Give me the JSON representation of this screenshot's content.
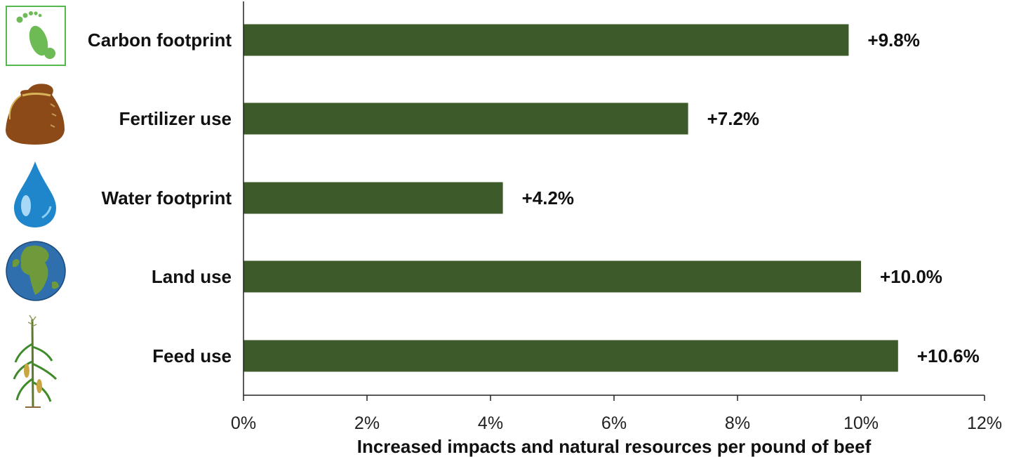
{
  "chart_data": {
    "type": "bar",
    "orientation": "horizontal",
    "categories": [
      "Carbon footprint",
      "Fertilizer use",
      "Water footprint",
      "Land use",
      "Feed use"
    ],
    "values": [
      9.8,
      7.2,
      4.2,
      10.0,
      10.6
    ],
    "value_labels": [
      "+9.8%",
      "+7.2%",
      "+4.2%",
      "+10.0%",
      "+10.6%"
    ],
    "xlabel": "Increased impacts and natural resources per pound of beef",
    "xlim": [
      0,
      12
    ],
    "xticks": [
      0,
      2,
      4,
      6,
      8,
      10,
      12
    ],
    "xtick_labels": [
      "0%",
      "2%",
      "4%",
      "6%",
      "8%",
      "10%",
      "12%"
    ],
    "grid": false,
    "bar_color": "#3d5a2a",
    "icons": [
      "footprint-icon",
      "fertilizer-sack-icon",
      "water-drop-icon",
      "globe-icon",
      "corn-plant-icon"
    ]
  }
}
